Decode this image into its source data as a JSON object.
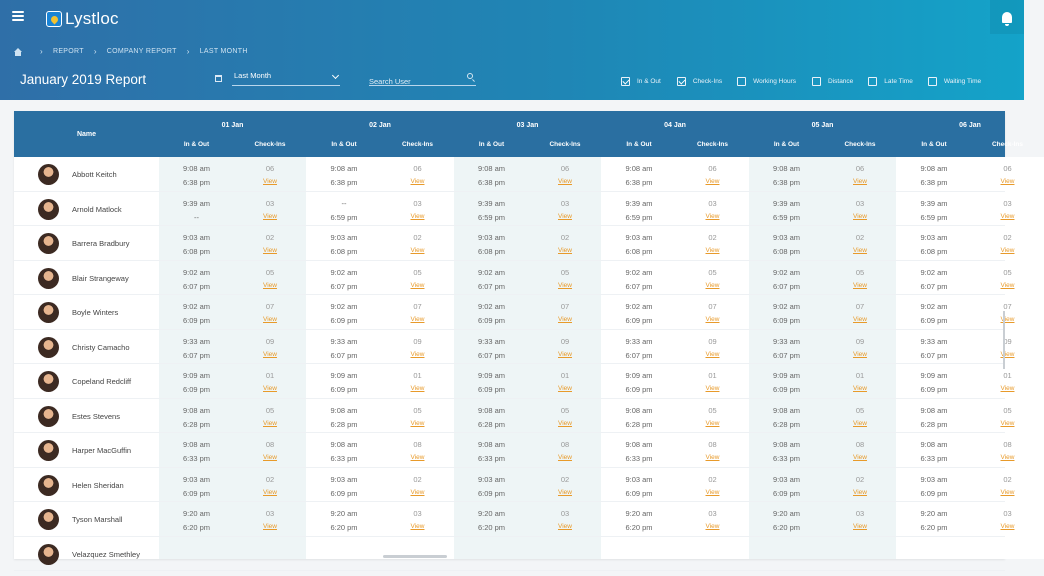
{
  "app": {
    "name": "Lystloc"
  },
  "breadcrumb": [
    "REPORT",
    "COMPANY REPORT",
    "LAST MONTH"
  ],
  "page_title": "January 2019 Report",
  "period": {
    "value": "Last Month"
  },
  "search": {
    "placeholder": "Search User"
  },
  "filters": [
    {
      "label": "In & Out",
      "checked": true
    },
    {
      "label": "Check-Ins",
      "checked": true
    },
    {
      "label": "Working Hours",
      "checked": false
    },
    {
      "label": "Distance",
      "checked": false
    },
    {
      "label": "Late Time",
      "checked": false
    },
    {
      "label": "Waiting Time",
      "checked": false
    }
  ],
  "table": {
    "name_header": "Name",
    "sub_in_out": "In & Out",
    "sub_checkins": "Check-Ins",
    "view_label": "View",
    "days": [
      "01 Jan",
      "02 Jan",
      "03 Jan",
      "04 Jan",
      "05 Jan",
      "06 Jan"
    ],
    "rows": [
      {
        "name": "Abbott Keitch",
        "cells": [
          [
            "9:08 am",
            "6:38 pm",
            "06"
          ],
          [
            "9:08 am",
            "6:38 pm",
            "06"
          ],
          [
            "9:08 am",
            "6:38 pm",
            "06"
          ],
          [
            "9:08 am",
            "6:38 pm",
            "06"
          ],
          [
            "9:08 am",
            "6:38 pm",
            "06"
          ],
          [
            "9:08 am",
            "6:38 pm",
            "06"
          ]
        ]
      },
      {
        "name": "Arnold Matlock",
        "cells": [
          [
            "9:39 am",
            "--",
            "03"
          ],
          [
            "--",
            "6:59 pm",
            "03"
          ],
          [
            "9:39 am",
            "6:59 pm",
            "03"
          ],
          [
            "9:39 am",
            "6:59 pm",
            "03"
          ],
          [
            "9:39 am",
            "6:59 pm",
            "03"
          ],
          [
            "9:39 am",
            "6:59 pm",
            "03"
          ]
        ]
      },
      {
        "name": "Barrera Bradbury",
        "cells": [
          [
            "9:03 am",
            "6:08 pm",
            "02"
          ],
          [
            "9:03 am",
            "6:08 pm",
            "02"
          ],
          [
            "9:03 am",
            "6:08 pm",
            "02"
          ],
          [
            "9:03 am",
            "6:08 pm",
            "02"
          ],
          [
            "9:03 am",
            "6:08 pm",
            "02"
          ],
          [
            "9:03 am",
            "6:08 pm",
            "02"
          ]
        ]
      },
      {
        "name": "Blair Strangeway",
        "cells": [
          [
            "9:02 am",
            "6:07 pm",
            "05"
          ],
          [
            "9:02 am",
            "6:07 pm",
            "05"
          ],
          [
            "9:02 am",
            "6:07 pm",
            "05"
          ],
          [
            "9:02 am",
            "6:07 pm",
            "05"
          ],
          [
            "9:02 am",
            "6:07 pm",
            "05"
          ],
          [
            "9:02 am",
            "6:07 pm",
            "05"
          ]
        ]
      },
      {
        "name": "Boyle Winters",
        "cells": [
          [
            "9:02 am",
            "6:09 pm",
            "07"
          ],
          [
            "9:02 am",
            "6:09 pm",
            "07"
          ],
          [
            "9:02 am",
            "6:09 pm",
            "07"
          ],
          [
            "9:02 am",
            "6:09 pm",
            "07"
          ],
          [
            "9:02 am",
            "6:09 pm",
            "07"
          ],
          [
            "9:02 am",
            "6:09 pm",
            "07"
          ]
        ]
      },
      {
        "name": "Christy Camacho",
        "cells": [
          [
            "9:33 am",
            "6:07 pm",
            "09"
          ],
          [
            "9:33 am",
            "6:07 pm",
            "09"
          ],
          [
            "9:33 am",
            "6:07 pm",
            "09"
          ],
          [
            "9:33 am",
            "6:07 pm",
            "09"
          ],
          [
            "9:33 am",
            "6:07 pm",
            "09"
          ],
          [
            "9:33 am",
            "6:07 pm",
            "09"
          ]
        ]
      },
      {
        "name": "Copeland Redcliff",
        "cells": [
          [
            "9:09 am",
            "6:09 pm",
            "01"
          ],
          [
            "9:09 am",
            "6:09 pm",
            "01"
          ],
          [
            "9:09 am",
            "6:09 pm",
            "01"
          ],
          [
            "9:09 am",
            "6:09 pm",
            "01"
          ],
          [
            "9:09 am",
            "6:09 pm",
            "01"
          ],
          [
            "9:09 am",
            "6:09 pm",
            "01"
          ]
        ]
      },
      {
        "name": "Estes Stevens",
        "cells": [
          [
            "9:08 am",
            "6:28 pm",
            "05"
          ],
          [
            "9:08 am",
            "6:28 pm",
            "05"
          ],
          [
            "9:08 am",
            "6:28 pm",
            "05"
          ],
          [
            "9:08 am",
            "6:28 pm",
            "05"
          ],
          [
            "9:08 am",
            "6:28 pm",
            "05"
          ],
          [
            "9:08 am",
            "6:28 pm",
            "05"
          ]
        ]
      },
      {
        "name": "Harper MacGuffin",
        "cells": [
          [
            "9:08 am",
            "6:33 pm",
            "08"
          ],
          [
            "9:08 am",
            "6:33 pm",
            "08"
          ],
          [
            "9:08 am",
            "6:33 pm",
            "08"
          ],
          [
            "9:08 am",
            "6:33 pm",
            "08"
          ],
          [
            "9:08 am",
            "6:33 pm",
            "08"
          ],
          [
            "9:08 am",
            "6:33 pm",
            "08"
          ]
        ]
      },
      {
        "name": "Helen Sheridan",
        "cells": [
          [
            "9:03 am",
            "6:09 pm",
            "02"
          ],
          [
            "9:03 am",
            "6:09 pm",
            "02"
          ],
          [
            "9:03 am",
            "6:09 pm",
            "02"
          ],
          [
            "9:03 am",
            "6:09 pm",
            "02"
          ],
          [
            "9:03 am",
            "6:09 pm",
            "02"
          ],
          [
            "9:03 am",
            "6:09 pm",
            "02"
          ]
        ]
      },
      {
        "name": "Tyson Marshall",
        "cells": [
          [
            "9:20 am",
            "6:20 pm",
            "03"
          ],
          [
            "9:20 am",
            "6:20 pm",
            "03"
          ],
          [
            "9:20 am",
            "6:20 pm",
            "03"
          ],
          [
            "9:20 am",
            "6:20 pm",
            "03"
          ],
          [
            "9:20 am",
            "6:20 pm",
            "03"
          ],
          [
            "9:20 am",
            "6:20 pm",
            "03"
          ]
        ]
      },
      {
        "name": "Velazquez Smethley",
        "cells": []
      }
    ]
  },
  "colors": {
    "header_start": "#2f6fa8",
    "header_end": "#14a3c9",
    "table_head": "#2a6fa1",
    "view_link": "#e89a2a",
    "shaded_col": "#eef5f6"
  }
}
